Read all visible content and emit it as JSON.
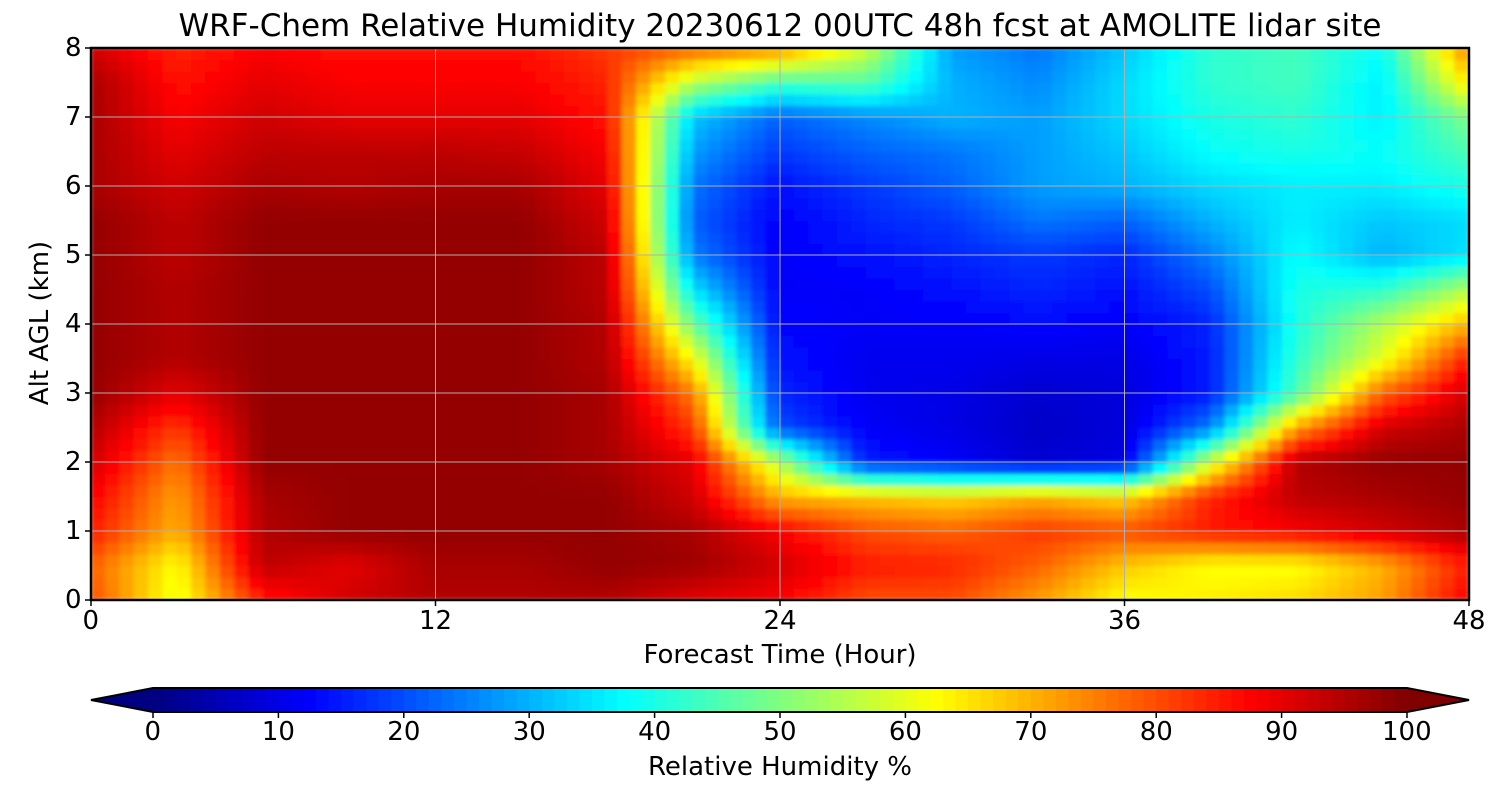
{
  "chart_data": {
    "type": "heatmap",
    "title": "WRF-Chem Relative Humidity 20230612 00UTC 48h fcst at AMOLITE lidar site",
    "xlabel": "Forecast Time (Hour)",
    "ylabel": "Alt AGL (km)",
    "xlim": [
      0,
      48
    ],
    "ylim": [
      0,
      8
    ],
    "x_ticks": [
      0,
      12,
      24,
      36,
      48
    ],
    "y_ticks": [
      0,
      1,
      2,
      3,
      4,
      5,
      6,
      7,
      8
    ],
    "grid": true,
    "colorbar": {
      "label": "Relative Humidity %",
      "colormap": "jet",
      "range": [
        0,
        100
      ],
      "ticks": [
        0,
        10,
        20,
        30,
        40,
        50,
        60,
        70,
        80,
        90,
        100
      ],
      "extend": "both",
      "orientation": "horizontal",
      "placement": "bottom"
    },
    "x": [
      0,
      3,
      6,
      9,
      12,
      15,
      18,
      21,
      24,
      27,
      30,
      33,
      36,
      39,
      42,
      45,
      48
    ],
    "y": [
      0,
      0.5,
      1,
      1.5,
      2,
      2.5,
      3,
      3.5,
      4,
      4.5,
      5,
      5.5,
      6,
      6.5,
      7,
      7.5,
      8
    ],
    "z": [
      [
        80,
        60,
        85,
        92,
        95,
        95,
        95,
        90,
        88,
        80,
        80,
        72,
        62,
        64,
        66,
        72,
        88
      ],
      [
        78,
        62,
        94,
        90,
        96,
        96,
        98,
        97,
        92,
        85,
        84,
        78,
        68,
        62,
        62,
        70,
        85
      ],
      [
        85,
        70,
        95,
        98,
        98,
        98,
        98,
        96,
        88,
        80,
        78,
        82,
        80,
        85,
        88,
        92,
        96
      ],
      [
        88,
        72,
        96,
        98,
        98,
        98,
        98,
        92,
        70,
        68,
        66,
        70,
        66,
        84,
        94,
        96,
        98
      ],
      [
        92,
        76,
        98,
        98,
        98,
        98,
        96,
        90,
        55,
        15,
        12,
        8,
        10,
        58,
        95,
        98,
        98
      ],
      [
        95,
        82,
        98,
        98,
        98,
        98,
        96,
        82,
        20,
        12,
        10,
        7,
        9,
        25,
        72,
        92,
        96
      ],
      [
        98,
        90,
        98,
        98,
        98,
        98,
        96,
        75,
        16,
        11,
        10,
        8,
        9,
        15,
        45,
        78,
        92
      ],
      [
        98,
        95,
        98,
        98,
        98,
        98,
        95,
        62,
        14,
        11,
        11,
        10,
        10,
        15,
        42,
        60,
        85
      ],
      [
        98,
        95,
        98,
        98,
        98,
        98,
        95,
        48,
        13,
        12,
        12,
        13,
        12,
        16,
        40,
        55,
        70
      ],
      [
        98,
        95,
        98,
        98,
        98,
        98,
        94,
        35,
        12,
        12,
        14,
        16,
        14,
        20,
        40,
        42,
        55
      ],
      [
        98,
        94,
        98,
        98,
        98,
        98,
        94,
        25,
        12,
        14,
        16,
        18,
        16,
        25,
        38,
        30,
        35
      ],
      [
        98,
        94,
        98,
        98,
        98,
        98,
        92,
        22,
        12,
        16,
        18,
        24,
        22,
        30,
        36,
        32,
        34
      ],
      [
        96,
        92,
        96,
        95,
        96,
        96,
        90,
        24,
        14,
        18,
        22,
        28,
        30,
        34,
        36,
        36,
        40
      ],
      [
        96,
        90,
        94,
        94,
        94,
        93,
        88,
        28,
        18,
        22,
        24,
        28,
        32,
        38,
        40,
        38,
        45
      ],
      [
        96,
        88,
        92,
        90,
        90,
        90,
        86,
        32,
        22,
        26,
        30,
        28,
        34,
        40,
        42,
        36,
        50
      ],
      [
        96,
        86,
        90,
        88,
        88,
        88,
        84,
        55,
        44,
        46,
        30,
        26,
        34,
        42,
        44,
        36,
        65
      ],
      [
        92,
        84,
        88,
        86,
        86,
        86,
        82,
        78,
        74,
        58,
        28,
        24,
        32,
        42,
        44,
        38,
        75
      ]
    ]
  }
}
